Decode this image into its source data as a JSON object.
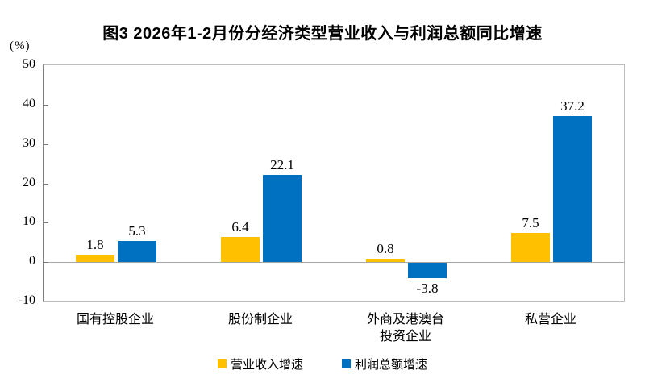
{
  "title": "图3  2026年1-2月份分经济类型营业收入与利润总额同比增速",
  "unit_label": "(%)",
  "chart_data": {
    "type": "bar",
    "categories": [
      "国有控股企业",
      "股份制企业",
      "外商及港澳台\n投资企业",
      "私营企业"
    ],
    "series": [
      {
        "name": "营业收入增速",
        "color": "#FFC000",
        "values": [
          1.8,
          6.4,
          0.8,
          7.5
        ]
      },
      {
        "name": "利润总额增速",
        "color": "#0070C0",
        "values": [
          5.3,
          22.1,
          -3.8,
          37.2
        ]
      }
    ],
    "value_labels": [
      [
        "1.8",
        "6.4",
        "0.8",
        "7.5"
      ],
      [
        "5.3",
        "22.1",
        "-3.8",
        "37.2"
      ]
    ],
    "ylabel": "(%)",
    "ylim": [
      -10,
      50
    ],
    "yticks": [
      50,
      40,
      30,
      20,
      10,
      0,
      -10
    ],
    "grid": false,
    "legend_position": "bottom",
    "zero_line": true
  }
}
